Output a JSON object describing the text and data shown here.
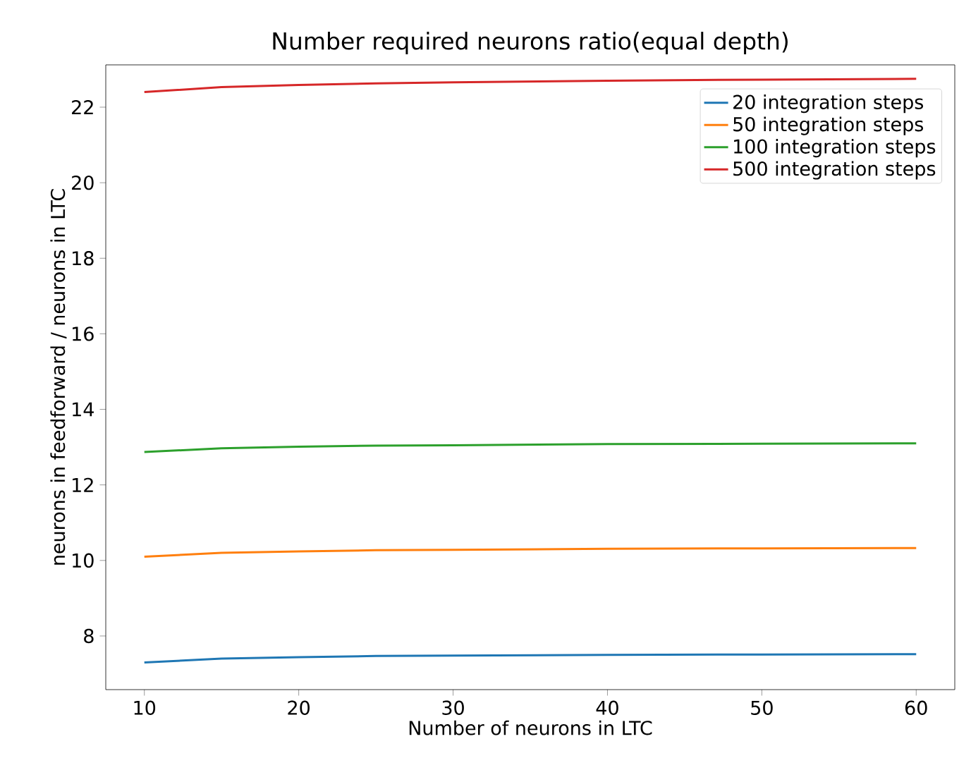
{
  "chart_data": {
    "type": "line",
    "title": "Number required neurons ratio(equal depth)",
    "xlabel": "Number of neurons in LTC",
    "ylabel": "neurons in feedforward / neurons in LTC",
    "x": [
      10,
      15,
      20,
      25,
      30,
      40,
      50,
      60
    ],
    "series": [
      {
        "name": "20 integration steps",
        "color": "#1f77b4",
        "values": [
          7.3,
          7.4,
          7.44,
          7.47,
          7.48,
          7.5,
          7.51,
          7.52
        ]
      },
      {
        "name": "50 integration steps",
        "color": "#ff7f0e",
        "values": [
          10.1,
          10.2,
          10.24,
          10.27,
          10.28,
          10.31,
          10.32,
          10.33
        ]
      },
      {
        "name": "100 integration steps",
        "color": "#2ca02c",
        "values": [
          12.87,
          12.97,
          13.01,
          13.04,
          13.05,
          13.08,
          13.09,
          13.1
        ]
      },
      {
        "name": "500 integration steps",
        "color": "#d62728",
        "values": [
          22.4,
          22.53,
          22.59,
          22.63,
          22.66,
          22.7,
          22.73,
          22.75
        ]
      }
    ],
    "xlim": [
      7.5,
      62.5
    ],
    "ylim": [
      6.58,
      23.12
    ],
    "xticks": [
      10,
      20,
      30,
      40,
      50,
      60
    ],
    "yticks": [
      8,
      10,
      12,
      14,
      16,
      18,
      20,
      22
    ],
    "grid": false,
    "legend": "top right",
    "marker": "none",
    "line_style": "solid"
  }
}
